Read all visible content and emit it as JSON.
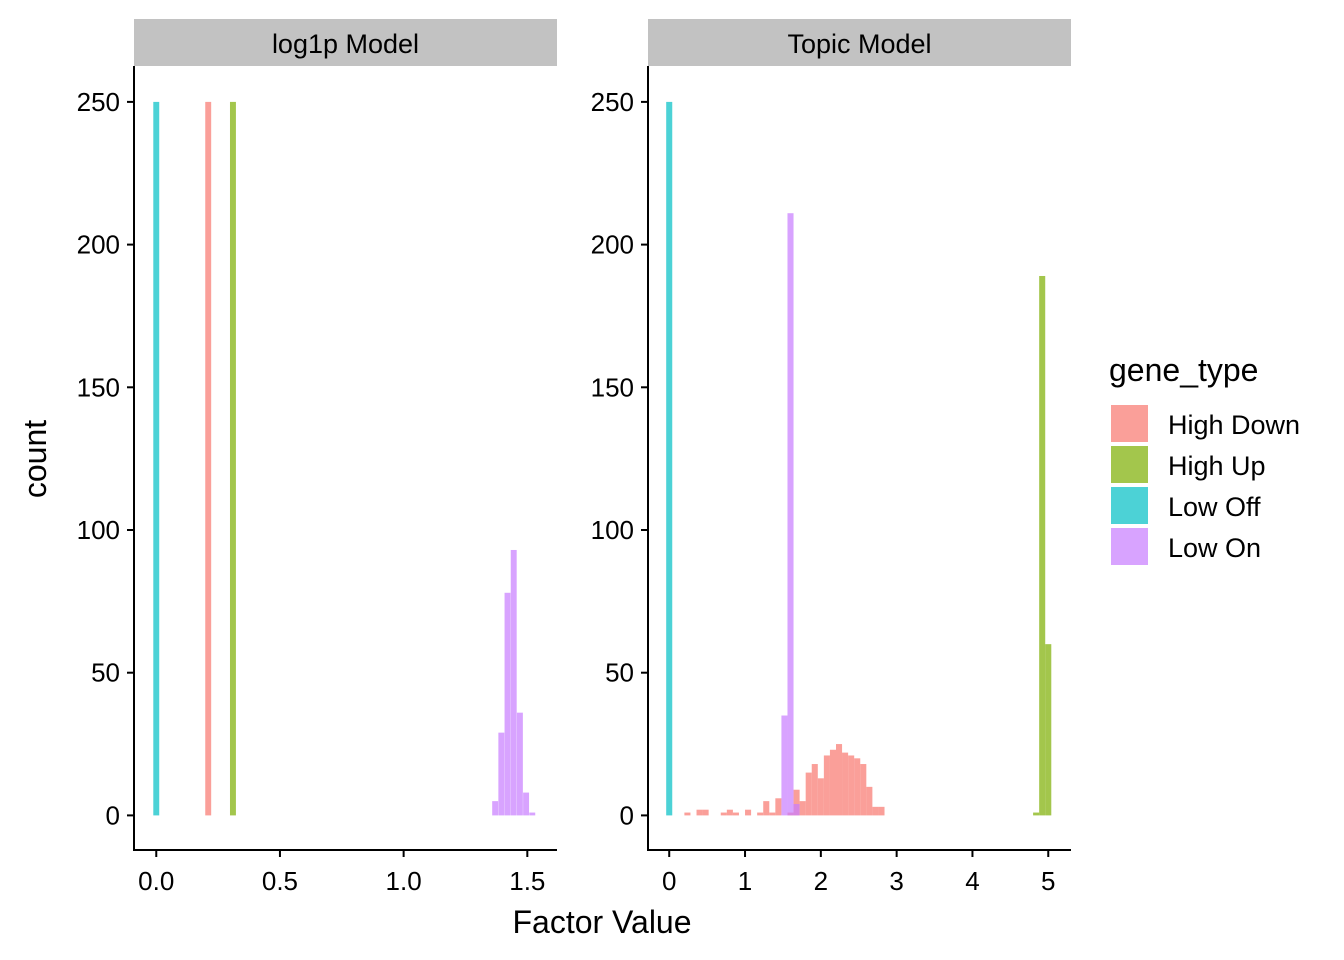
{
  "chart_data": {
    "type": "bar",
    "subtype": "faceted histogram",
    "xlabel": "Factor Value",
    "ylabel": "count",
    "legend": {
      "title": "gene_type",
      "position": "right",
      "entries": [
        {
          "label": "High Down",
          "color": "#F8766D"
        },
        {
          "label": "High Up",
          "color": "#7CAE00"
        },
        {
          "label": "Low Off",
          "color": "#00BFC4"
        },
        {
          "label": "Low On",
          "color": "#C77CFF"
        }
      ]
    },
    "bar_opacity": 0.7,
    "grid": false,
    "ylim": [
      -12,
      262
    ],
    "yticks": [
      0,
      50,
      100,
      150,
      200,
      250
    ],
    "panels": [
      {
        "strip_label": "log1p Model",
        "xlim": [
          -0.09,
          1.62
        ],
        "xticks": [
          0.0,
          0.5,
          1.0,
          1.5
        ],
        "xtick_labels": [
          "0.0",
          "0.5",
          "1.0",
          "1.5"
        ],
        "bin_width": 0.024,
        "series": [
          {
            "name": "High Down",
            "bars": [
              {
                "x": 0.21,
                "count": 250
              }
            ]
          },
          {
            "name": "High Up",
            "bars": [
              {
                "x": 0.31,
                "count": 250
              }
            ]
          },
          {
            "name": "Low Off",
            "bars": [
              {
                "x": 0.0,
                "count": 250
              }
            ]
          },
          {
            "name": "Low On",
            "bars": [
              {
                "x": 1.37,
                "count": 5
              },
              {
                "x": 1.395,
                "count": 29
              },
              {
                "x": 1.42,
                "count": 78
              },
              {
                "x": 1.445,
                "count": 93
              },
              {
                "x": 1.47,
                "count": 36
              },
              {
                "x": 1.495,
                "count": 8
              },
              {
                "x": 1.52,
                "count": 1
              }
            ]
          }
        ]
      },
      {
        "strip_label": "Topic Model",
        "xlim": [
          -0.28,
          5.3
        ],
        "xticks": [
          0,
          1,
          2,
          3,
          4,
          5
        ],
        "xtick_labels": [
          "0",
          "1",
          "2",
          "3",
          "4",
          "5"
        ],
        "bin_width": 0.08,
        "series": [
          {
            "name": "High Down",
            "bars": [
              {
                "x": 0.24,
                "count": 1
              },
              {
                "x": 0.4,
                "count": 2
              },
              {
                "x": 0.48,
                "count": 2
              },
              {
                "x": 0.72,
                "count": 1
              },
              {
                "x": 0.8,
                "count": 2
              },
              {
                "x": 0.88,
                "count": 1
              },
              {
                "x": 1.04,
                "count": 2
              },
              {
                "x": 1.2,
                "count": 1
              },
              {
                "x": 1.28,
                "count": 5
              },
              {
                "x": 1.36,
                "count": 1
              },
              {
                "x": 1.44,
                "count": 6
              },
              {
                "x": 1.6,
                "count": 1
              },
              {
                "x": 1.68,
                "count": 9
              },
              {
                "x": 1.76,
                "count": 5
              },
              {
                "x": 1.84,
                "count": 15
              },
              {
                "x": 1.92,
                "count": 18
              },
              {
                "x": 2.0,
                "count": 13
              },
              {
                "x": 2.08,
                "count": 21
              },
              {
                "x": 2.16,
                "count": 23
              },
              {
                "x": 2.24,
                "count": 25
              },
              {
                "x": 2.32,
                "count": 22
              },
              {
                "x": 2.4,
                "count": 21
              },
              {
                "x": 2.48,
                "count": 20
              },
              {
                "x": 2.56,
                "count": 18
              },
              {
                "x": 2.64,
                "count": 10
              },
              {
                "x": 2.72,
                "count": 3
              },
              {
                "x": 2.8,
                "count": 3
              }
            ]
          },
          {
            "name": "High Up",
            "bars": [
              {
                "x": 4.84,
                "count": 1
              },
              {
                "x": 4.92,
                "count": 189
              },
              {
                "x": 5.0,
                "count": 60
              }
            ]
          },
          {
            "name": "Low Off",
            "bars": [
              {
                "x": 0.0,
                "count": 250
              }
            ]
          },
          {
            "name": "Low On",
            "bars": [
              {
                "x": 1.52,
                "count": 35
              },
              {
                "x": 1.6,
                "count": 211
              },
              {
                "x": 1.68,
                "count": 4
              }
            ]
          }
        ]
      }
    ]
  }
}
